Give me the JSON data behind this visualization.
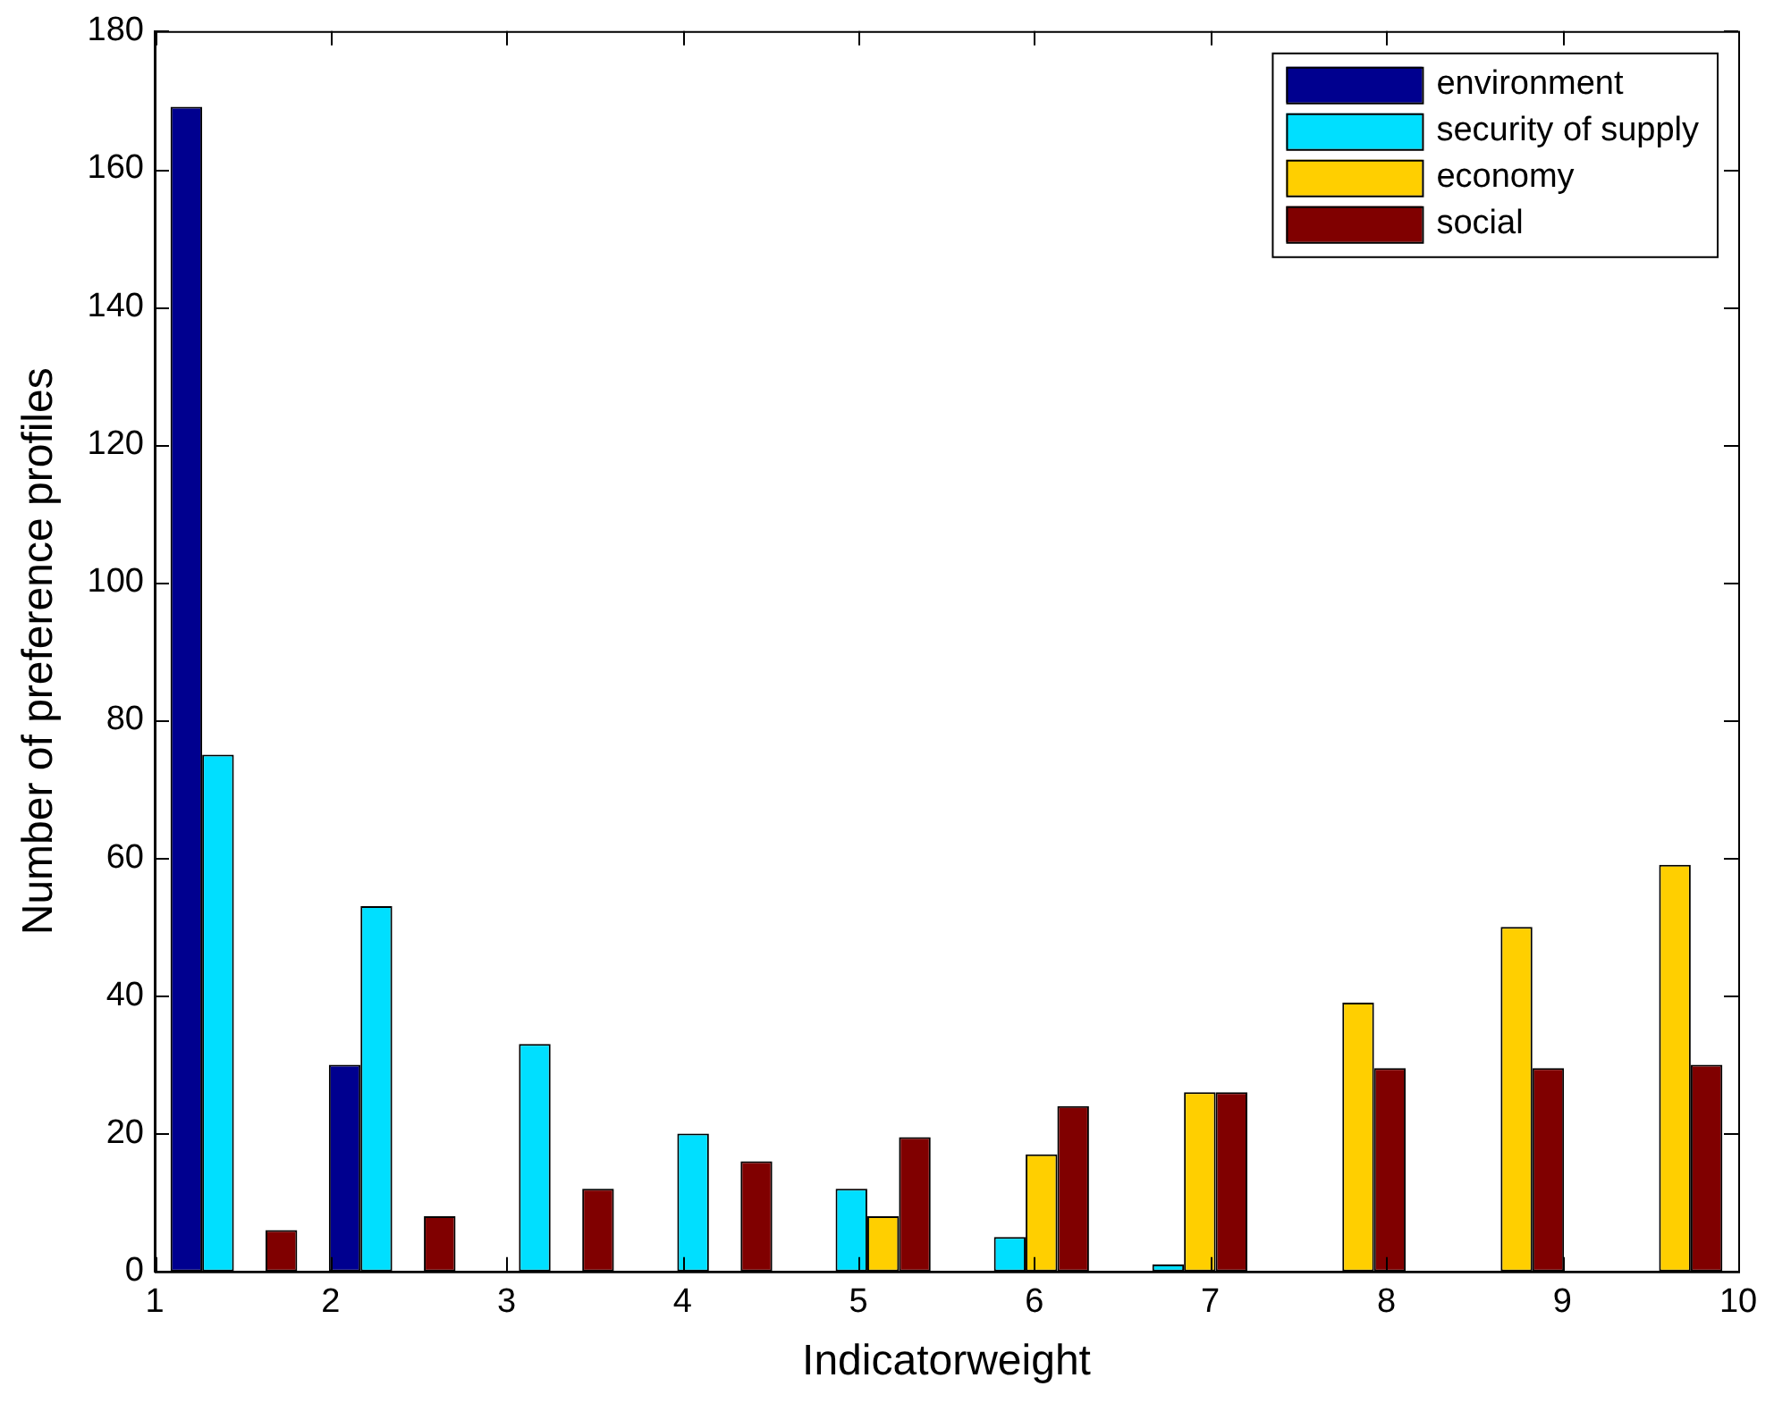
{
  "chart_data": {
    "type": "histogram",
    "xlabel": "Indicatorweight",
    "ylabel": "Number of preference profiles",
    "bins": [
      1,
      1.9,
      2.8,
      3.7,
      4.6,
      5.5,
      6.4,
      7.3,
      8.2,
      9.1,
      10
    ],
    "series": [
      {
        "name": "environment",
        "color": "#00008f",
        "values": [
          169,
          30,
          0,
          0,
          0,
          0,
          0,
          0,
          0,
          0
        ]
      },
      {
        "name": "security of supply",
        "color": "#00dfff",
        "values": [
          75,
          53,
          33,
          20,
          12,
          5,
          1,
          0,
          0,
          0
        ]
      },
      {
        "name": "economy",
        "color": "#ffcf00",
        "values": [
          0,
          0,
          0,
          0,
          8,
          17,
          26,
          39,
          50,
          59
        ]
      },
      {
        "name": "social",
        "color": "#800000",
        "values": [
          6,
          8,
          12,
          16,
          19.5,
          24,
          26,
          29.5,
          29.5,
          30
        ]
      }
    ],
    "xlim": [
      1,
      10
    ],
    "xticks": [
      1,
      2,
      3,
      4,
      5,
      6,
      7,
      8,
      9,
      10
    ],
    "ylim": [
      0,
      180
    ],
    "yticks": [
      0,
      20,
      40,
      60,
      80,
      100,
      120,
      140,
      160,
      180
    ],
    "legend": "top right"
  }
}
